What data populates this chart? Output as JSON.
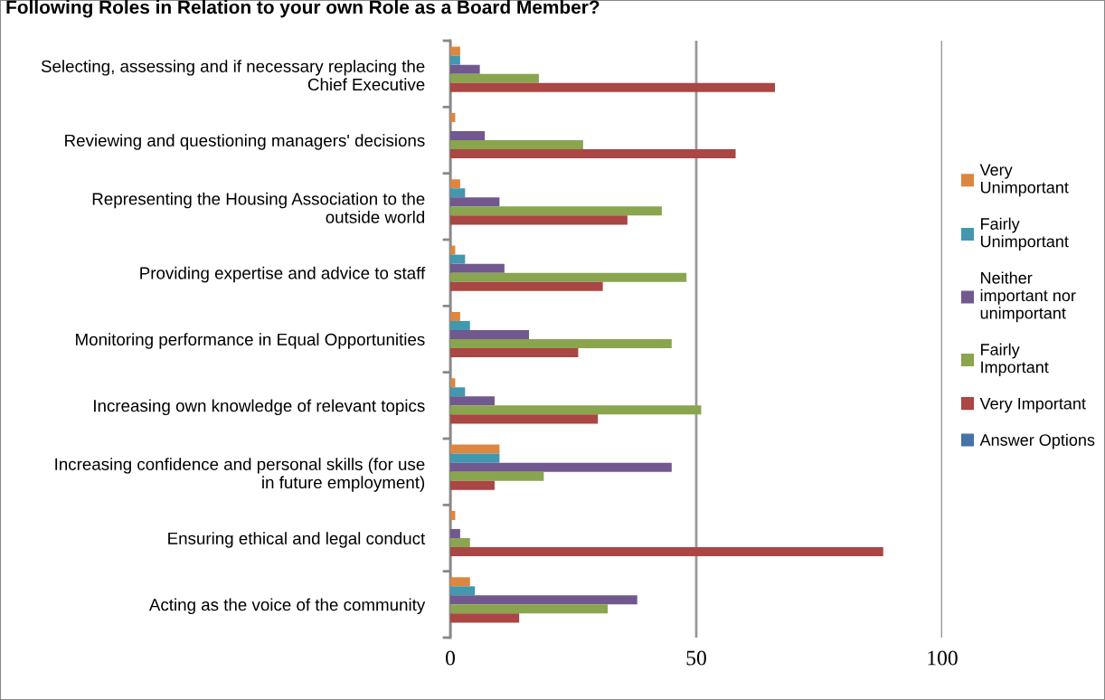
{
  "chart_data": {
    "type": "bar",
    "orientation": "horizontal",
    "title": "Following Roles in Relation to your own Role as a Board Member?",
    "categories": [
      "Selecting, assessing and if necessary replacing the\nChief Executive",
      "Reviewing and questioning managers' decisions",
      "Representing the Housing Association to the\noutside world",
      "Providing expertise and advice to staff",
      "Monitoring performance in Equal Opportunities",
      "Increasing own knowledge of relevant topics",
      "Increasing confidence and personal skills (for use\nin future employment)",
      "Ensuring ethical and legal conduct",
      "Acting as the voice of the community"
    ],
    "series": [
      {
        "name": "Very\nUnimportant",
        "color": "#dd8640",
        "values": [
          2,
          1,
          2,
          1,
          2,
          1,
          10,
          1,
          4
        ]
      },
      {
        "name": "Fairly\nUnimportant",
        "color": "#4198af",
        "values": [
          2,
          0,
          3,
          3,
          4,
          3,
          10,
          0,
          5
        ]
      },
      {
        "name": "Neither\nimportant nor\nunimportant",
        "color": "#71588f",
        "values": [
          6,
          7,
          10,
          11,
          16,
          9,
          45,
          2,
          38
        ]
      },
      {
        "name": "Fairly\nImportant",
        "color": "#89a54e",
        "values": [
          18,
          27,
          43,
          48,
          45,
          51,
          19,
          4,
          32
        ]
      },
      {
        "name": "Very Important",
        "color": "#aa4643",
        "values": [
          66,
          58,
          36,
          31,
          26,
          30,
          9,
          88,
          14
        ]
      },
      {
        "name": "Answer Options",
        "color": "#4572a7",
        "values": [
          null,
          null,
          null,
          null,
          null,
          null,
          null,
          null,
          null
        ]
      }
    ],
    "xlim": [
      0,
      100
    ],
    "xticks": [
      0,
      50,
      100
    ],
    "grid": "x",
    "legend": "right"
  }
}
